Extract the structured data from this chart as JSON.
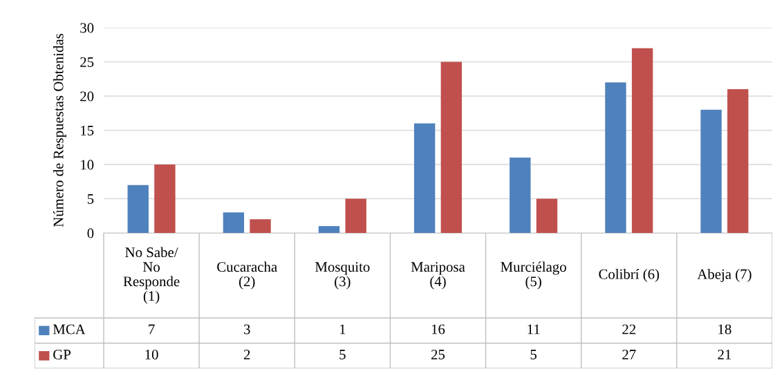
{
  "chart_data": {
    "type": "bar",
    "ylabel": "Número de Respuestas Obtenidas",
    "categories": [
      "No Sabe/\nNo\nResponde\n(1)",
      "Cucaracha\n(2)",
      "Mosquito\n(3)",
      "Mariposa\n(4)",
      "Murciélago\n(5)",
      "Colibrí (6)",
      "Abeja (7)"
    ],
    "series": [
      {
        "name": "MCA",
        "color": "#4f81bd",
        "values": [
          7,
          3,
          1,
          16,
          11,
          22,
          18
        ]
      },
      {
        "name": "GP",
        "color": "#c0504d",
        "values": [
          10,
          2,
          5,
          25,
          5,
          27,
          21
        ]
      }
    ],
    "ylim": [
      0,
      30
    ],
    "yticks": [
      0,
      5,
      10,
      15,
      20,
      25,
      30
    ],
    "grid": "y",
    "data_labels": true,
    "legend": "bottom"
  }
}
